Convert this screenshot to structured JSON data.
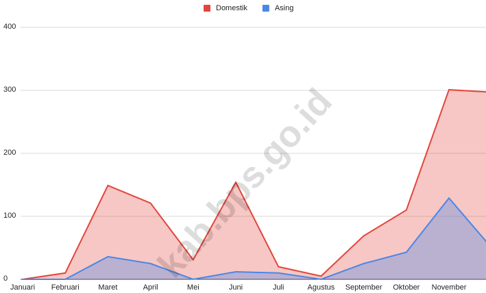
{
  "chart_data": {
    "type": "area",
    "categories": [
      "Januari",
      "Februari",
      "Maret",
      "April",
      "Mei",
      "Juni",
      "Juli",
      "Agustus",
      "September",
      "Oktober",
      "November",
      null
    ],
    "series": [
      {
        "name": "Domestik",
        "color": "#e2453c",
        "values": [
          0,
          10,
          149,
          121,
          31,
          154,
          20,
          5,
          69,
          110,
          301,
          297
        ]
      },
      {
        "name": "Asing",
        "color": "#4a86e8",
        "values": [
          0,
          0,
          36,
          25,
          0,
          12,
          10,
          0,
          25,
          43,
          129,
          50
        ]
      }
    ],
    "ylim": [
      0,
      400
    ],
    "yticks": [
      0,
      100,
      200,
      300,
      400
    ],
    "grid": true,
    "legend": "top",
    "watermark": "kab.bps.go.id"
  }
}
